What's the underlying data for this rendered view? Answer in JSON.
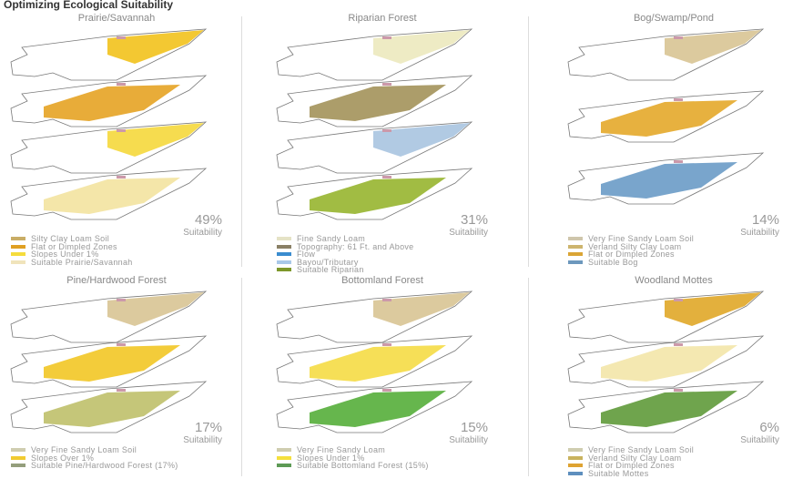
{
  "title": "Optimizing Ecological Suitability",
  "suitability_label": "Suitability",
  "panels": [
    {
      "title": "Prairie/Savannah",
      "percent": "49%",
      "layers": [
        "#f2c21c",
        "#e6a323",
        "#f5d83c",
        "#f3e3a0"
      ],
      "legend": [
        {
          "label": "Silty Clay Loam Soil",
          "color": "#c9ad66"
        },
        {
          "label": "Flat or Dimpled Zones",
          "color": "#e0a022"
        },
        {
          "label": "Slopes Under 1%",
          "color": "#f5dc3c"
        },
        {
          "label": "Suitable Prairie/Savannah",
          "color": "#f0e4bb"
        }
      ]
    },
    {
      "title": "Riparian Forest",
      "percent": "31%",
      "layers": [
        "#ece9be",
        "#a3925a",
        "#a9c4e0",
        "#97b52f"
      ],
      "legend": [
        {
          "label": "Fine Sandy Loam",
          "color": "#e5e3c6"
        },
        {
          "label": "Topography: 61 Ft. and Above",
          "color": "#8a8066"
        },
        {
          "label": "Flow",
          "color": "#3a8ccf"
        },
        {
          "label": "Bayou/Tributary",
          "color": "#a9c8e8"
        },
        {
          "label": "Suitable Riparian",
          "color": "#7d972a"
        }
      ]
    },
    {
      "title": "Bog/Swamp/Pond",
      "percent": "14%",
      "layers": [
        "#d8c493",
        "#e4a92a",
        "#6a9bc6"
      ],
      "legend": [
        {
          "label": "Very Fine Sandy Loam Soil",
          "color": "#cfc6ac"
        },
        {
          "label": "Verland Silty Clay Loam",
          "color": "#cdb56e"
        },
        {
          "label": "Flat or Dimpled Zones",
          "color": "#daa535"
        },
        {
          "label": "Suitable Bog",
          "color": "#6d98bd"
        }
      ]
    },
    {
      "title": "Pine/Hardwood Forest",
      "percent": "17%",
      "layers": [
        "#d8c493",
        "#f2c725",
        "#bfc06a"
      ],
      "legend": [
        {
          "label": "Very Fine Sandy Loam Soil",
          "color": "#cfcdb0"
        },
        {
          "label": "Slopes Over 1%",
          "color": "#f1cb30"
        },
        {
          "label": "Suitable Pine/Hardwood Forest (17%)",
          "color": "#949e7c"
        }
      ]
    },
    {
      "title": "Bottomland Forest",
      "percent": "15%",
      "layers": [
        "#d8c493",
        "#f5dc45",
        "#55ae3a"
      ],
      "legend": [
        {
          "label": "Very Fine Sandy Loam",
          "color": "#cfcdb0"
        },
        {
          "label": "Slopes Under 1%",
          "color": "#f5e03c"
        },
        {
          "label": "Suitable Bottomland Forest (15%)",
          "color": "#5d9a55"
        }
      ]
    },
    {
      "title": "Woodland Mottes",
      "percent": "6%",
      "layers": [
        "#e0a728",
        "#f3e6a8",
        "#5f9a3a"
      ],
      "legend": [
        {
          "label": "Very Fine Sandy Loam Soil",
          "color": "#cfcdb0"
        },
        {
          "label": "Verland Silty Clay Loam",
          "color": "#c9b35e"
        },
        {
          "label": "Flat or Dimpled Zones",
          "color": "#dea332"
        },
        {
          "label": "Suitable Mottes",
          "color": "#5e8fbe"
        }
      ]
    }
  ]
}
